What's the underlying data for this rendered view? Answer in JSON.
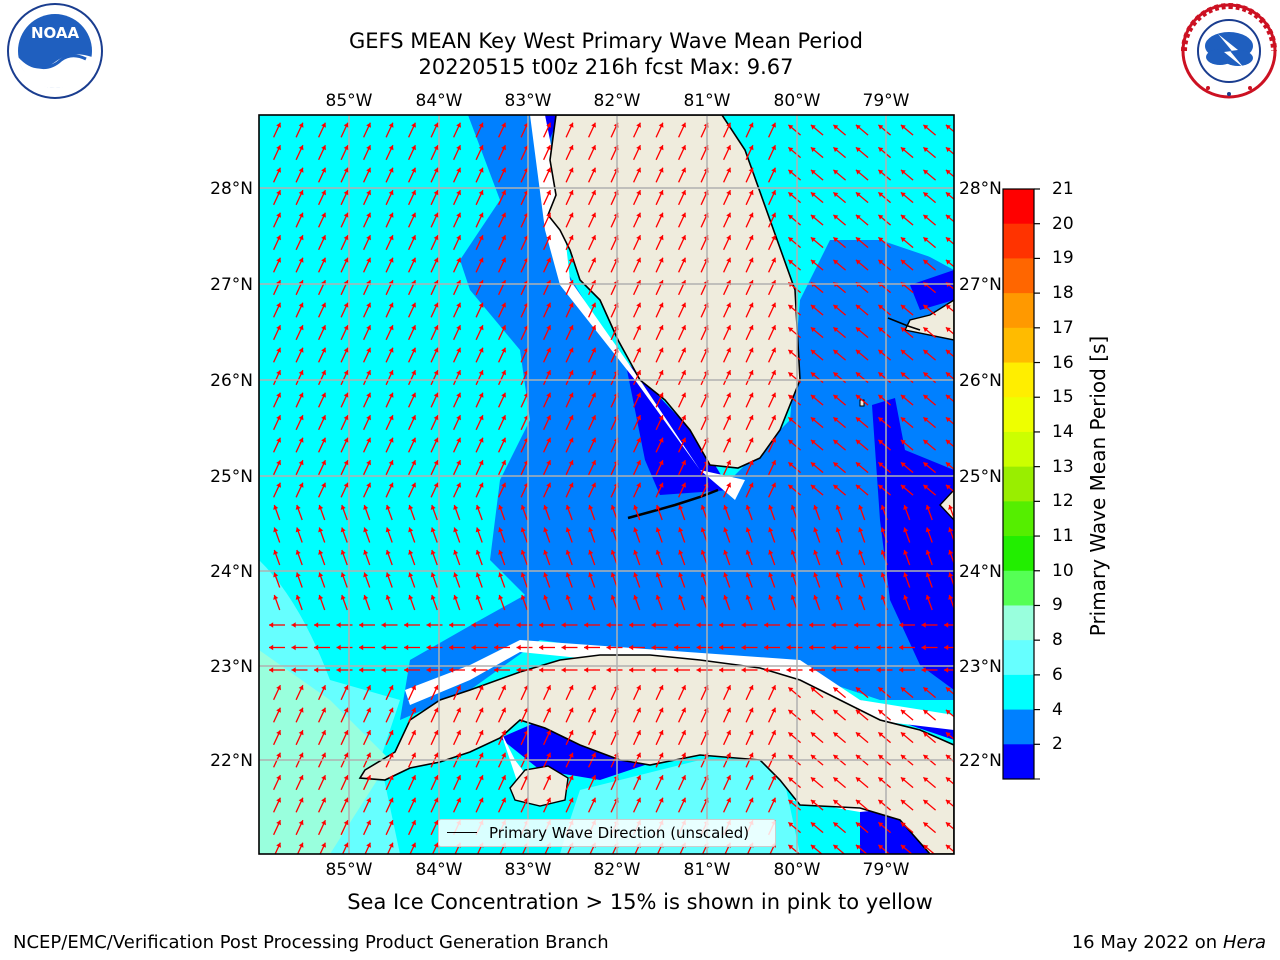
{
  "header": {
    "title_line1": "GEFS MEAN Key West Primary Wave Mean Period",
    "title_line2": "20220515 t00z 216h fcst   Max: 9.67"
  },
  "logos": {
    "left": {
      "icon": "noaa-logo",
      "text": "NOAA"
    },
    "right": {
      "icon": "nws-logo",
      "text": "NATIONAL WEATHER SERVICE"
    }
  },
  "map": {
    "lon_labels": [
      "85°W",
      "84°W",
      "83°W",
      "82°W",
      "81°W",
      "80°W",
      "79°W"
    ],
    "lat_labels": [
      "28°N",
      "27°N",
      "26°N",
      "25°N",
      "24°N",
      "23°N",
      "22°N"
    ],
    "legend": "Primary Wave Direction (unscaled)",
    "arrow_color": "#ff0000",
    "land_color": "#efecdd"
  },
  "colorbar": {
    "label": "Primary Wave Mean Period [s]",
    "ticks": [
      "21",
      "20",
      "19",
      "18",
      "17",
      "16",
      "15",
      "14",
      "13",
      "12",
      "11",
      "10",
      "9",
      "8",
      "6",
      "4",
      "2"
    ],
    "colors": [
      "#ff0000",
      "#ff3300",
      "#ff6600",
      "#ff9900",
      "#ffbb00",
      "#ffee00",
      "#eeff00",
      "#ccff00",
      "#99ee00",
      "#55ee00",
      "#22ee00",
      "#55ff55",
      "#99ffdd",
      "#66ffff",
      "#00ffff",
      "#0080ff",
      "#0000ff"
    ]
  },
  "footer": {
    "note": "Sea Ice Concentration > 15% is shown in pink to yellow",
    "credit": "NCEP/EMC/Verification Post Processing Product Generation Branch",
    "date": "16 May 2022 on",
    "machine": "Hera"
  }
}
